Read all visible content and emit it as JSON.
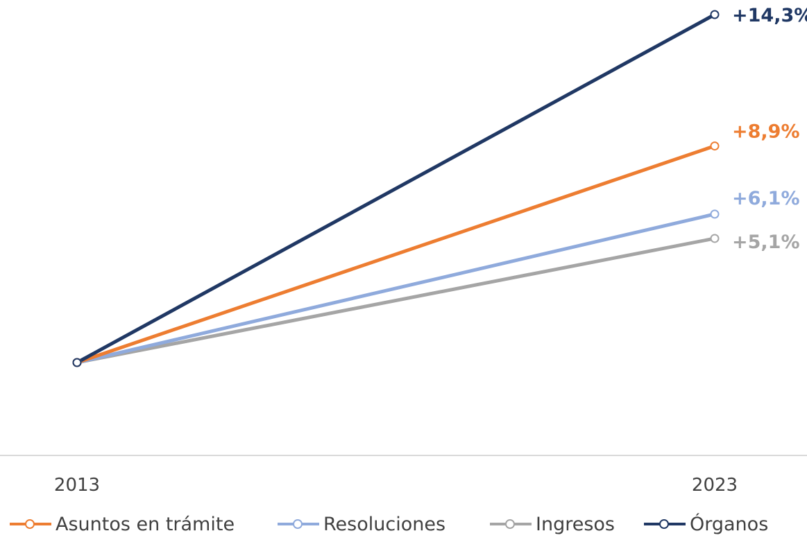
{
  "chart_data": {
    "type": "line",
    "categories": [
      "2013",
      "2023"
    ],
    "ylim": [
      -10,
      16
    ],
    "grid": false,
    "legend": "bottom",
    "series": [
      {
        "name": "Asuntos en trámite",
        "values": [
          0,
          8.9
        ],
        "end_label": "+8,9%",
        "color": "#ED7D31"
      },
      {
        "name": "Resoluciones",
        "values": [
          0,
          6.1
        ],
        "end_label": "+6,1%",
        "color": "#8FAADC"
      },
      {
        "name": "Ingresos",
        "values": [
          0,
          5.1
        ],
        "end_label": "+5,1%",
        "color": "#A5A5A5"
      },
      {
        "name": "Órganos",
        "values": [
          0,
          14.3
        ],
        "end_label": "+14,3%",
        "color": "#203864"
      }
    ]
  }
}
